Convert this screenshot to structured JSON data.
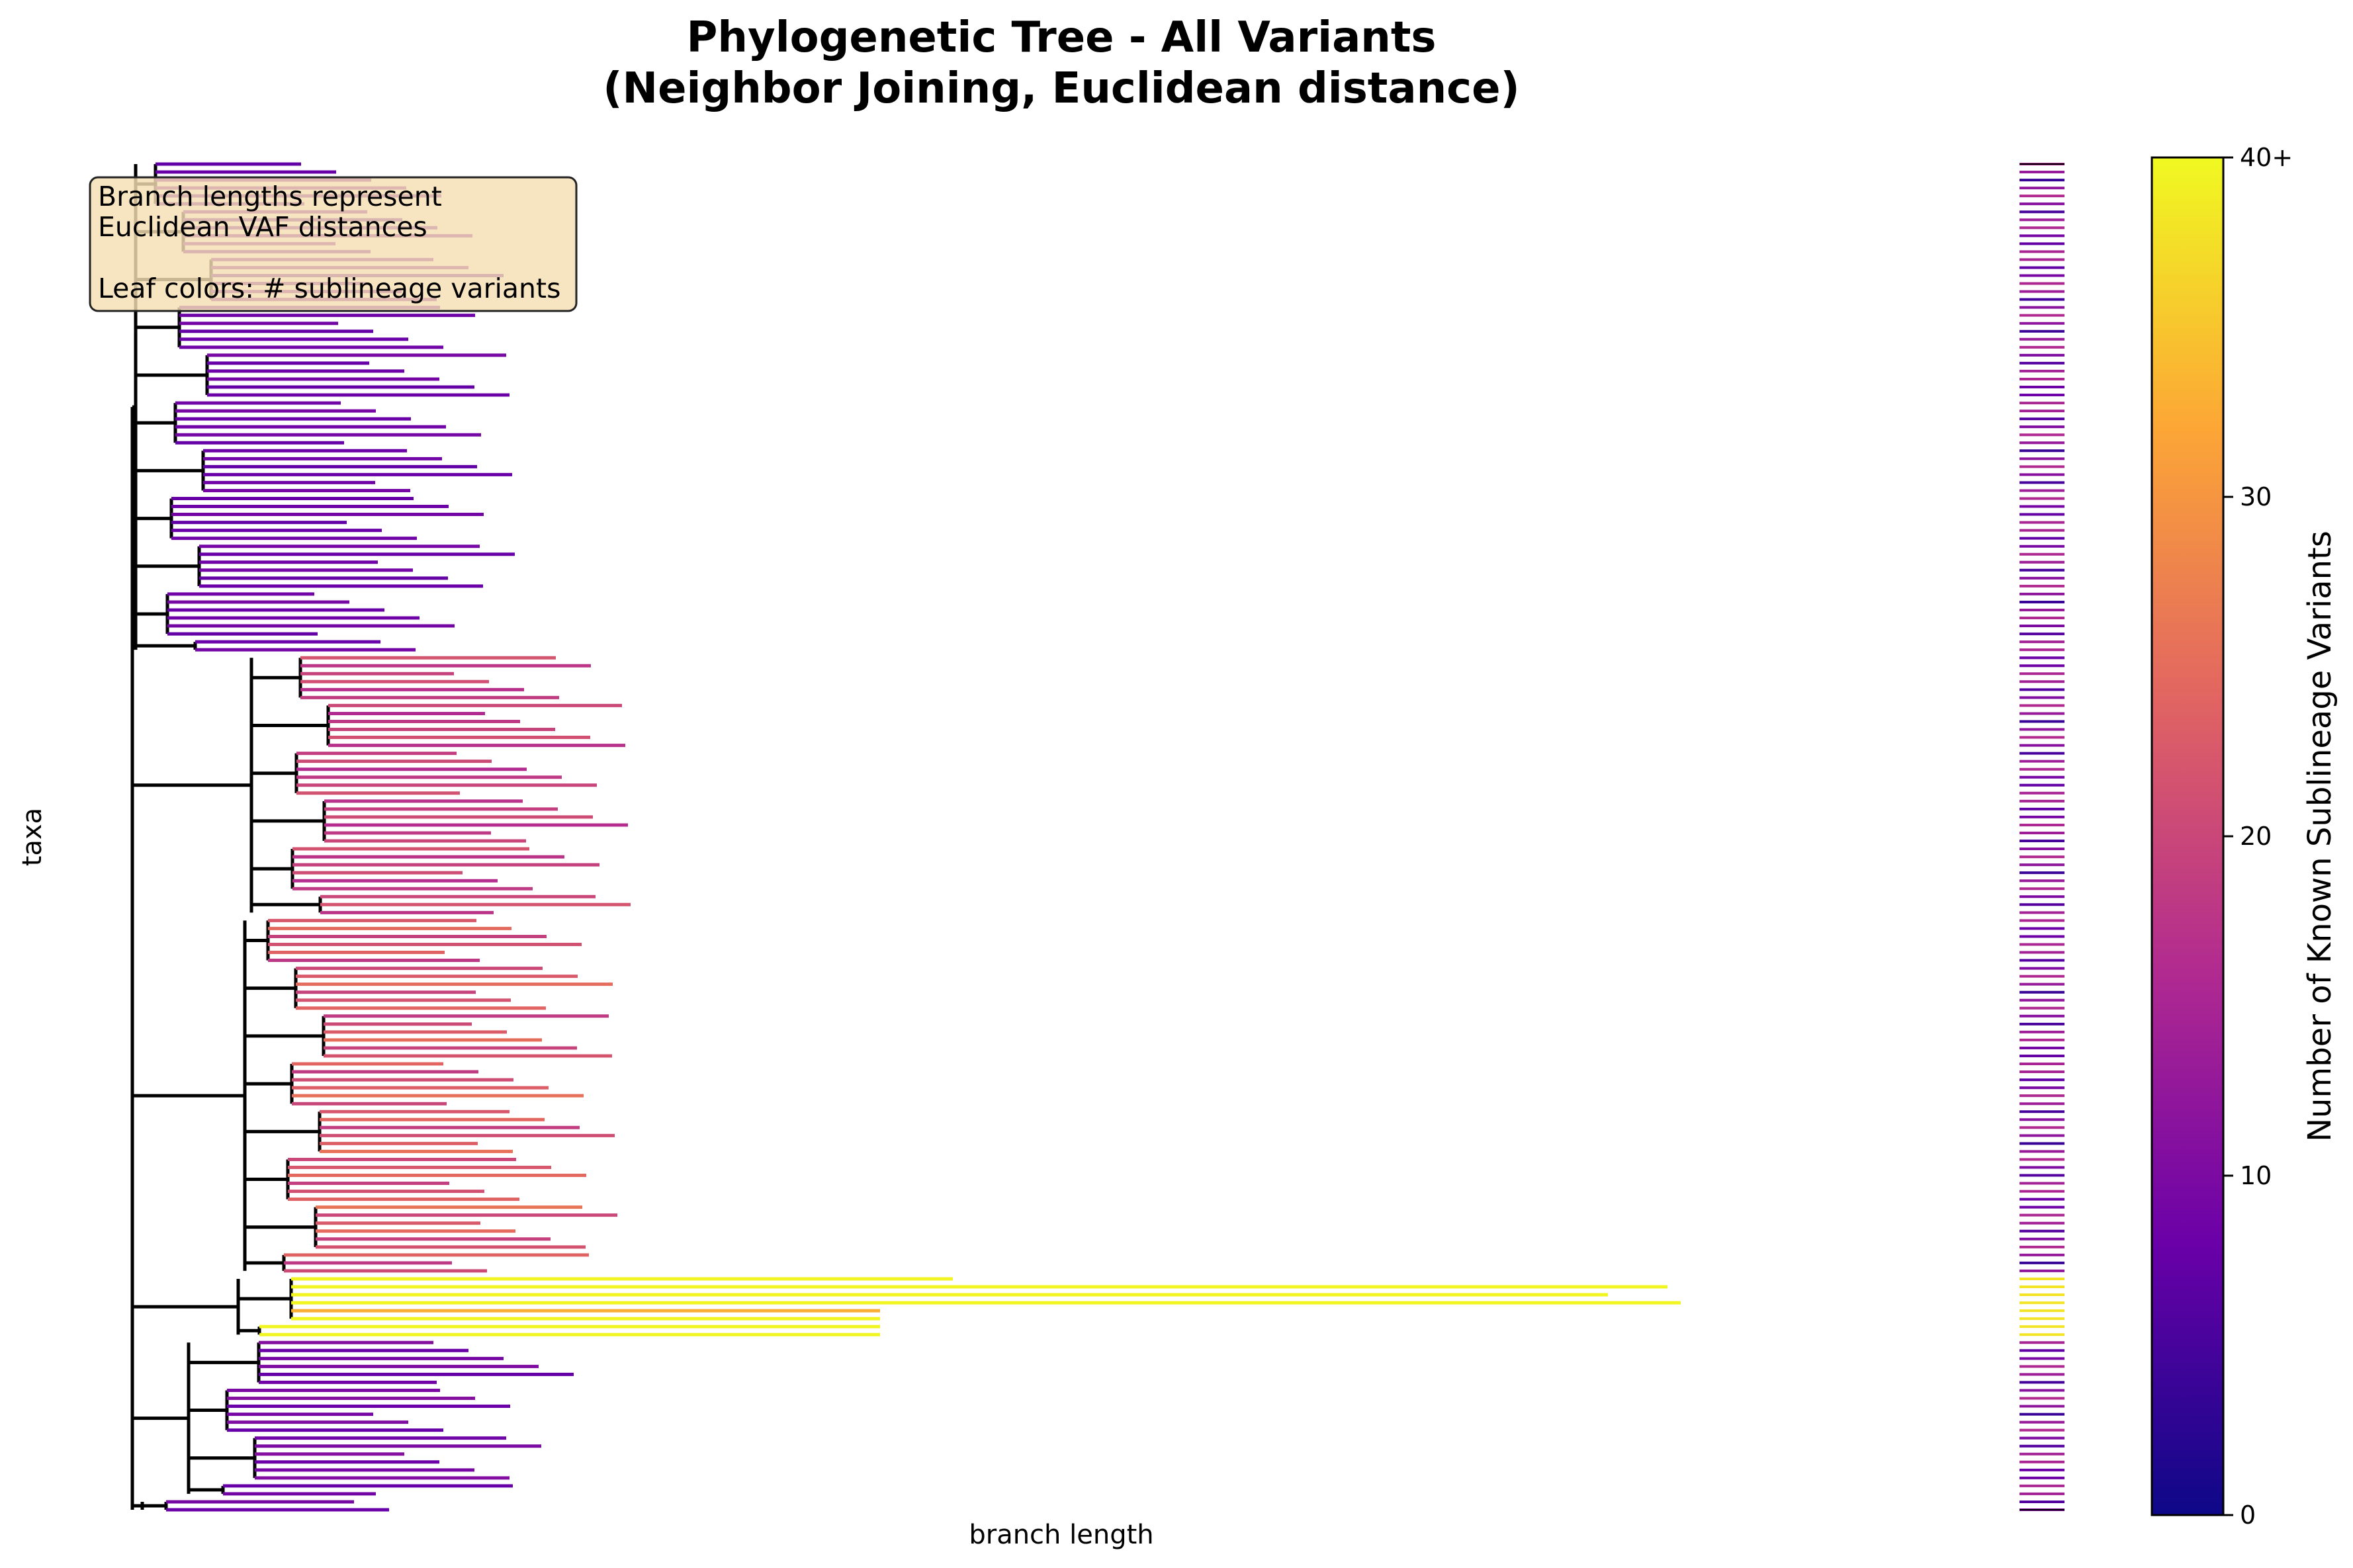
{
  "chart_data": {
    "type": "phylogenetic-tree",
    "title_lines": [
      "Phylogenetic Tree - All Variants",
      "(Neighbor Joining, Euclidean distance)"
    ],
    "xlabel": "branch length",
    "ylabel": "taxa",
    "leaf_count": 170,
    "annotation_lines": [
      "Branch lengths represent",
      "Euclidean VAF distances",
      "",
      "Leaf colors: # sublineage variants"
    ],
    "colorbar": {
      "label": "Number of Known Sublineage Variants",
      "colormap": "plasma",
      "range": [
        0,
        40
      ],
      "ticks": [
        {
          "value": 0,
          "label": "0"
        },
        {
          "value": 10,
          "label": "10"
        },
        {
          "value": 20,
          "label": "20"
        },
        {
          "value": 30,
          "label": "30"
        },
        {
          "value": 40,
          "label": "40+"
        }
      ]
    },
    "colors": {
      "internal_branch": "#000000",
      "plasma_stops": [
        "#0d0887",
        "#6a00a8",
        "#b12a90",
        "#e16462",
        "#fca636",
        "#f0f921"
      ],
      "annotation_box_fill": "#f5deb3",
      "annotation_box_edge": "#222222"
    }
  }
}
